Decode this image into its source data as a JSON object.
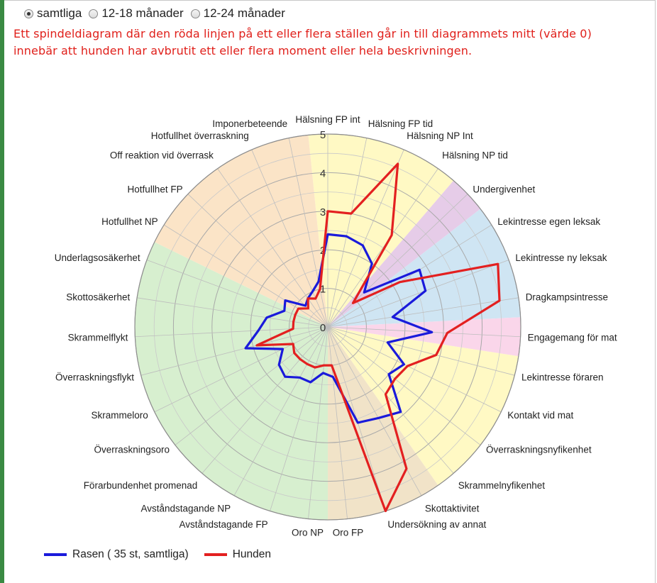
{
  "filter": {
    "options": [
      {
        "label": "samtliga",
        "checked": true
      },
      {
        "label": "12-18 månader",
        "checked": false
      },
      {
        "label": "12-24 månader",
        "checked": false
      }
    ]
  },
  "note": {
    "line1": "Ett spindeldiagram där den röda linjen på ett eller flera ställen går in till diagrammets mitt (värde 0)",
    "line2": "innebär att hunden har avbrutit ett eller flera moment eller hela beskrivningen."
  },
  "chart_data": {
    "type": "radar",
    "rmin": 0,
    "rmax": 5,
    "ticks": [
      "0",
      "1",
      "2",
      "3",
      "4",
      "5"
    ],
    "grid": true,
    "legend_position": "bottom-left",
    "labels": [
      "Hälsning FP int",
      "Hälsning FP tid",
      "Hälsning NP Int",
      "Hälsning NP tid",
      "Undergivenhet",
      "Lekintresse egen leksak",
      "Lekintresse ny leksak",
      "Dragkampsintresse",
      "Engagemang för mat",
      "Lekintresse föraren",
      "Kontakt vid mat",
      "Överraskningsnyfikenhet",
      "Skrammelnyfikenhet",
      "Skottaktivitet",
      "Undersökning av annat",
      "Oro FP",
      "Oro NP",
      "Avståndstagande FP",
      "Avståndstagande NP",
      "Förarbundenhet promenad",
      "Överraskningsoro",
      "Skrammeloro",
      "Överraskningsflykt",
      "Skrammelflykt",
      "Skottosäkerhet",
      "Underlagsosäkerhet",
      "Hotfullhet NP",
      "Hotfullhet FP",
      "Off reaktion vid överrask",
      "Hotfullhet överraskning",
      "Imponerbeteende"
    ],
    "series": [
      {
        "name": "Rasen ( 35 st, samtliga)",
        "color": "#1a1adb",
        "values": [
          2.4,
          2.4,
          2.3,
          2.0,
          1.3,
          2.8,
          2.7,
          1.7,
          2.7,
          1.6,
          2.2,
          2.0,
          2.9,
          2.7,
          2.6,
          1.3,
          1.2,
          1.5,
          1.5,
          1.7,
          1.6,
          1.3,
          2.2,
          1.8,
          1.6,
          1.2,
          1.3,
          0.8,
          0.9,
          1.0,
          1.2
        ]
      },
      {
        "name": "Hunden",
        "color": "#e32020",
        "values": [
          3.0,
          3.0,
          4.6,
          2.9,
          0.9,
          2.2,
          4.7,
          4.5,
          3.1,
          2.9,
          2.3,
          2.2,
          2.3,
          4.2,
          5.0,
          1.0,
          1.0,
          1.1,
          1.1,
          1.1,
          1.1,
          1.0,
          1.9,
          0.9,
          0.9,
          0.9,
          0.9,
          0.7,
          0.9,
          0.8,
          1.0
        ]
      }
    ],
    "bands": [
      {
        "from": 0,
        "to": 3,
        "color": "#fff9c4"
      },
      {
        "from": 4,
        "to": 4,
        "color": "#e6cce8"
      },
      {
        "from": 5,
        "to": 7,
        "color": "#cfe5f3"
      },
      {
        "from": 8,
        "to": 8,
        "color": "#fad6ea"
      },
      {
        "from": 9,
        "to": 12,
        "color": "#fff9c4"
      },
      {
        "from": 13,
        "to": 15,
        "color": "#f1e3c8"
      },
      {
        "from": 16,
        "to": 25,
        "color": "#d7efcf"
      },
      {
        "from": 26,
        "to": 30,
        "color": "#fbe4c7"
      }
    ]
  }
}
